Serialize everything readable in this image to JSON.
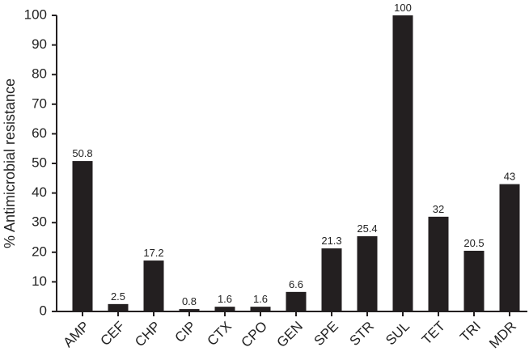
{
  "chart_data": {
    "type": "bar",
    "y_label": "% Antimicrobial resistance",
    "categories": [
      "AMP",
      "CEF",
      "CHP",
      "CIP",
      "CTX",
      "CPO",
      "GEN",
      "SPE",
      "STR",
      "SUL",
      "TET",
      "TRI",
      "MDR"
    ],
    "values": [
      50.8,
      2.5,
      17.2,
      0.8,
      1.6,
      1.6,
      6.6,
      21.3,
      25.4,
      100,
      32,
      20.5,
      43
    ],
    "color": "#231f20",
    "ylim": [
      0,
      100
    ],
    "yticks": [
      0,
      10,
      20,
      30,
      40,
      50,
      60,
      70,
      80,
      90,
      100
    ],
    "grid": false
  }
}
